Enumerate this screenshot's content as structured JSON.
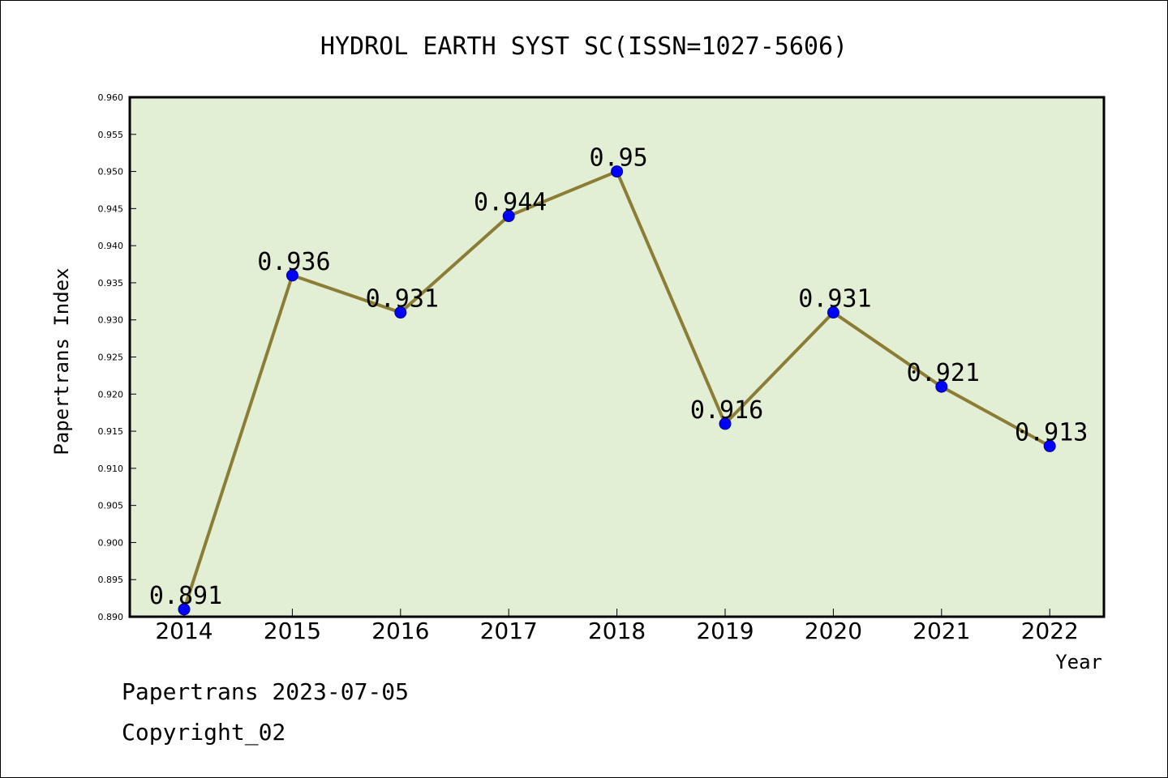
{
  "chart_data": {
    "type": "line",
    "title": "HYDROL EARTH SYST SC(ISSN=1027-5606)",
    "xlabel": "Year",
    "ylabel": "Papertrans Index",
    "categories": [
      "2014",
      "2015",
      "2016",
      "2017",
      "2018",
      "2019",
      "2020",
      "2021",
      "2022"
    ],
    "values": [
      0.891,
      0.936,
      0.931,
      0.944,
      0.95,
      0.916,
      0.931,
      0.921,
      0.913
    ],
    "data_labels": [
      "0.891",
      "0.936",
      "0.931",
      "0.944",
      "0.95",
      "0.916",
      "0.931",
      "0.921",
      "0.913"
    ],
    "ylim": [
      0.89,
      0.96
    ],
    "yticks": [
      "0.890",
      "0.895",
      "0.900",
      "0.905",
      "0.910",
      "0.915",
      "0.920",
      "0.925",
      "0.930",
      "0.935",
      "0.940",
      "0.945",
      "0.950",
      "0.955",
      "0.960"
    ],
    "grid": false,
    "colors": {
      "plot_background": "#e2efd4",
      "line": "#8c7d36",
      "marker": "#0000ff"
    }
  },
  "footer": {
    "line1": "Papertrans 2023-07-05",
    "line2": "Copyright_02"
  }
}
